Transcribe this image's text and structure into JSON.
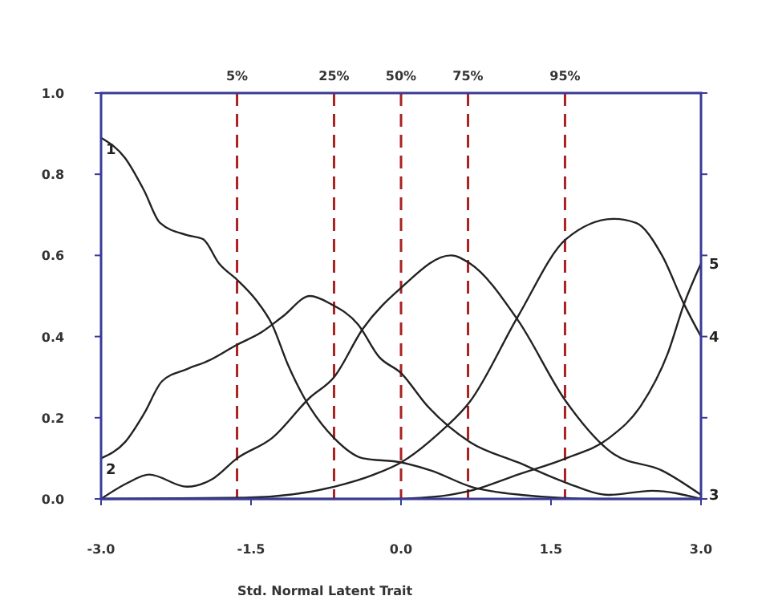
{
  "chart_data": {
    "type": "line",
    "xlabel": "Std. Normal Latent Trait",
    "xlim": [
      -3,
      3
    ],
    "ylim": [
      0,
      1
    ],
    "xticks": [
      {
        "value": -3,
        "label": "-3.0"
      },
      {
        "value": -1.5,
        "label": "-1.5"
      },
      {
        "value": 0,
        "label": "0.0"
      },
      {
        "value": 1.5,
        "label": "1.5"
      },
      {
        "value": 3,
        "label": "3.0"
      }
    ],
    "yticks": [
      {
        "value": 0,
        "label": "0.0"
      },
      {
        "value": 0.2,
        "label": "0.2"
      },
      {
        "value": 0.4,
        "label": "0.4"
      },
      {
        "value": 0.6,
        "label": "0.6"
      },
      {
        "value": 0.8,
        "label": "0.8"
      },
      {
        "value": 1,
        "label": "1.0"
      }
    ],
    "grid": false,
    "marker": "none",
    "line_style": "solid",
    "series": [
      {
        "name": "1",
        "color": "#222222",
        "x": [
          -3,
          -2.76,
          -2.57,
          -2.41,
          -2.14,
          -1.98,
          -1.82,
          -1.64,
          -1.45,
          -1.29,
          -1.13,
          -0.97,
          -0.67,
          -0.38,
          0,
          0.3,
          0.7,
          1.2,
          2,
          3
        ],
        "values": [
          0.89,
          0.84,
          0.76,
          0.68,
          0.65,
          0.64,
          0.58,
          0.54,
          0.49,
          0.43,
          0.33,
          0.25,
          0.15,
          0.1,
          0.09,
          0.07,
          0.03,
          0.01,
          0,
          0
        ]
      },
      {
        "name": "2",
        "color": "#222222",
        "x": [
          -3,
          -2.76,
          -2.57,
          -2.39,
          -2.14,
          -1.93,
          -1.64,
          -1.4,
          -1.18,
          -0.91,
          -0.7,
          -0.43,
          -0.22,
          0,
          0.26,
          0.69,
          1.17,
          1.65,
          2.08,
          2.51,
          3
        ],
        "values": [
          0.1,
          0.14,
          0.21,
          0.29,
          0.32,
          0.34,
          0.38,
          0.41,
          0.45,
          0.5,
          0.48,
          0.43,
          0.35,
          0.31,
          0.23,
          0.14,
          0.09,
          0.04,
          0.01,
          0.02,
          0
        ]
      },
      {
        "name": "3",
        "color": "#222222",
        "x": [
          -3,
          -2.73,
          -2.52,
          -2.14,
          -1.88,
          -1.64,
          -1.29,
          -0.91,
          -0.67,
          -0.38,
          0,
          0.5,
          0.69,
          1.17,
          1.65,
          2.13,
          2.61,
          3
        ],
        "values": [
          0,
          0.04,
          0.06,
          0.03,
          0.05,
          0.1,
          0.15,
          0.25,
          0.3,
          0.42,
          0.52,
          0.6,
          0.58,
          0.44,
          0.24,
          0.11,
          0.07,
          0.01
        ]
      },
      {
        "name": "4",
        "color": "#222222",
        "x": [
          -3,
          -1.56,
          -0.67,
          -0.27,
          0,
          0.37,
          0.69,
          1.17,
          1.65,
          2.13,
          2.35,
          2.61,
          2.83,
          3
        ],
        "values": [
          0,
          0.003,
          0.03,
          0.06,
          0.09,
          0.16,
          0.24,
          0.45,
          0.64,
          0.69,
          0.68,
          0.6,
          0.48,
          0.4
        ]
      },
      {
        "name": "5",
        "color": "#222222",
        "x": [
          -3,
          -0.17,
          0.32,
          0.69,
          1.17,
          1.65,
          2.08,
          2.4,
          2.67,
          2.83,
          3
        ],
        "values": [
          0,
          0,
          0.005,
          0.02,
          0.06,
          0.1,
          0.15,
          0.23,
          0.36,
          0.48,
          0.58
        ]
      }
    ],
    "ref_lines": [
      {
        "axis": "x",
        "value": -1.64,
        "color": "#aa2222",
        "line_style": "dashed"
      },
      {
        "axis": "x",
        "value": -0.67,
        "color": "#aa2222",
        "line_style": "dashed"
      },
      {
        "axis": "x",
        "value": 0,
        "color": "#aa2222",
        "line_style": "dashed"
      },
      {
        "axis": "x",
        "value": 0.67,
        "color": "#aa2222",
        "line_style": "dashed"
      },
      {
        "axis": "x",
        "value": 1.64,
        "color": "#aa2222",
        "line_style": "dashed"
      }
    ],
    "annotations": [
      "5%",
      "25%",
      "50%",
      "75%",
      "95%"
    ]
  }
}
